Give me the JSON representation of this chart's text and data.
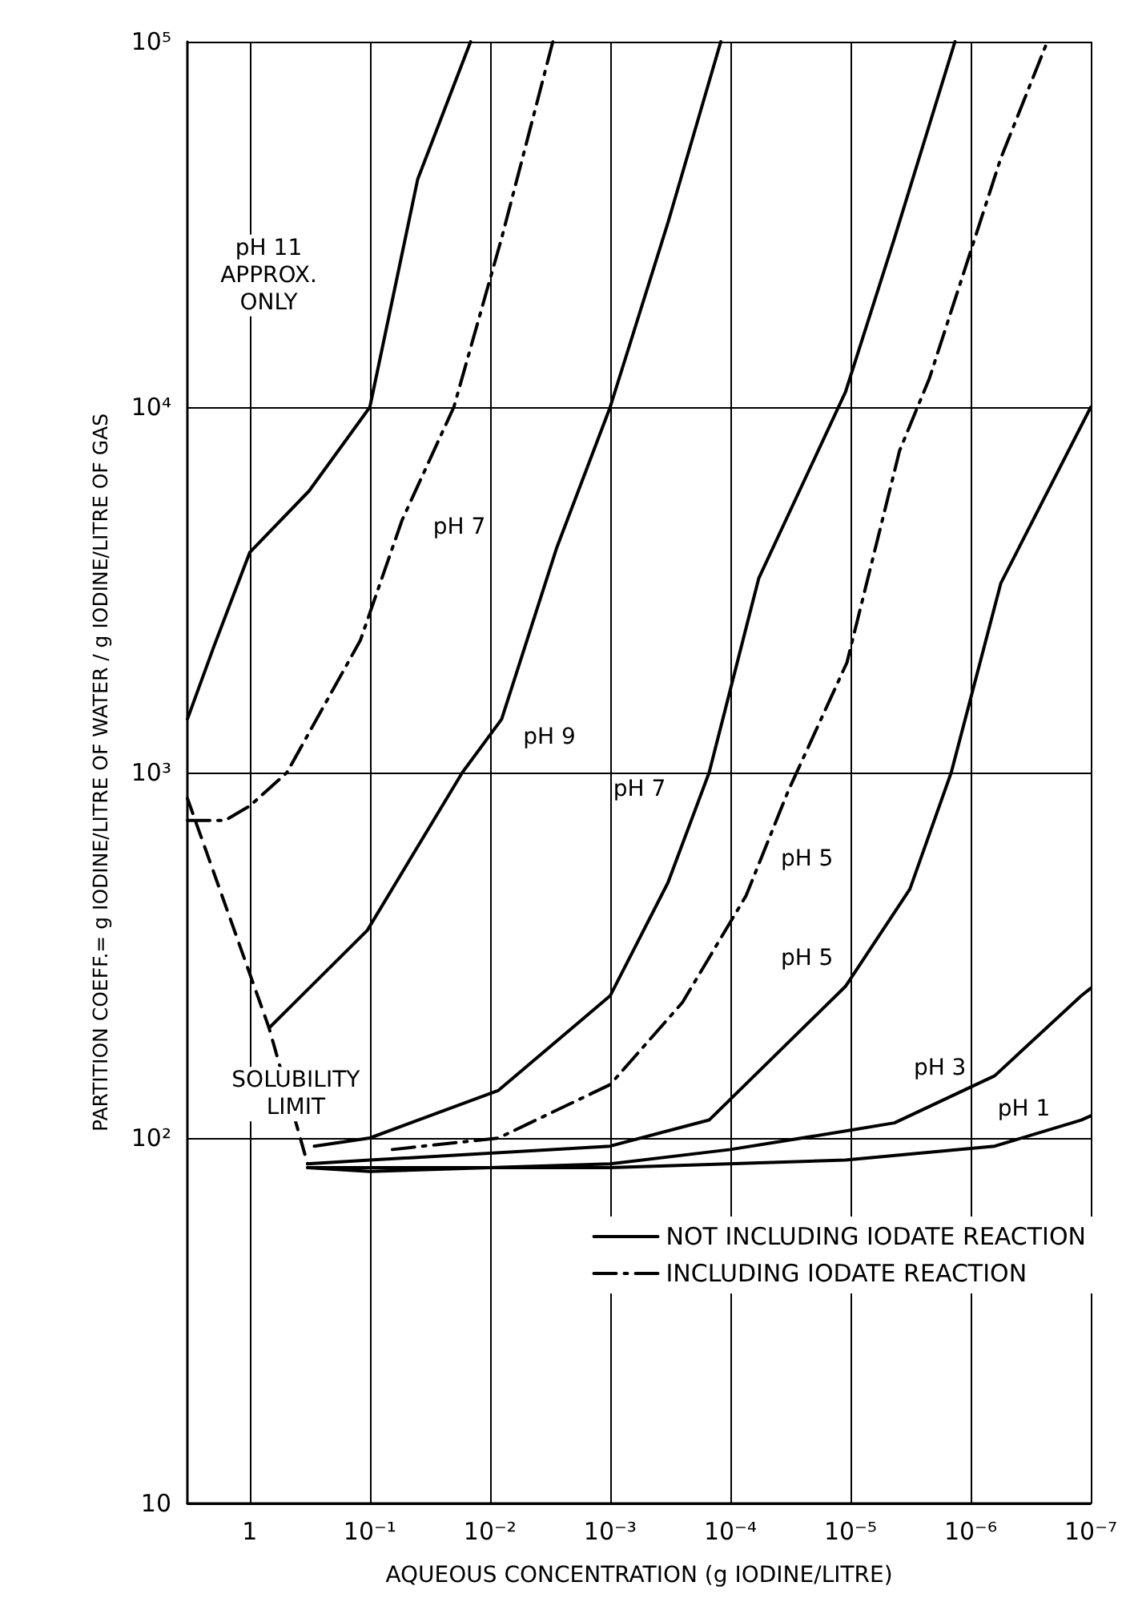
{
  "chart_data": {
    "type": "line",
    "xlabel": "AQUEOUS CONCENTRATION (g IODINE/LITRE)",
    "ylabel": "PARTITION COEFF.= g IODINE/LITRE OF WATER / g IODINE/LITRE OF GAS",
    "log": "xy",
    "grid": true,
    "legend": "bottom right",
    "marker": "none",
    "xlim": [
      3.3,
      1e-07
    ],
    "xticks": [
      {
        "value": 1,
        "label": "1"
      },
      {
        "value": 0.1,
        "label": "10⁻¹"
      },
      {
        "value": 0.01,
        "label": "10⁻²"
      },
      {
        "value": 0.001,
        "label": "10⁻³"
      },
      {
        "value": 0.0001,
        "label": "10⁻⁴"
      },
      {
        "value": 1e-05,
        "label": "10⁻⁵"
      },
      {
        "value": 1e-06,
        "label": "10⁻⁶"
      },
      {
        "value": 1e-07,
        "label": "10⁻⁷"
      }
    ],
    "ylim": [
      10,
      100000
    ],
    "yticks": [
      10,
      {
        "value": 100,
        "label": "10²"
      },
      {
        "value": 1000,
        "label": "10³"
      },
      {
        "value": 10000,
        "label": "10⁴"
      },
      {
        "value": 100000,
        "label": "10⁵"
      }
    ],
    "series": [
      {
        "name": "NOT INCLUDING IODATE REACTION",
        "color": "#000000",
        "line_style": "solid",
        "x": [
          3.3,
          2.0,
          1,
          0.32,
          0.1,
          0.04,
          0.0145
        ],
        "values": [
          1400,
          2200,
          4000,
          5900,
          10000,
          42000,
          100000
        ]
      },
      {
        "name": "INCLUDING IODATE REACTION",
        "color": "#000000",
        "line_style": "dashdot",
        "x": [
          3.3,
          1.6,
          1,
          0.49,
          0.12,
          0.054,
          0.02,
          0.008,
          0.003
        ],
        "values": [
          740,
          740,
          810,
          1000,
          2300,
          4900,
          10000,
          29000,
          100000
        ]
      },
      {
        "color": "#000000",
        "line_style": "solid",
        "x": [
          0.69,
          0.105,
          0.017,
          0.008,
          0.0028,
          0.001,
          0.00033,
          0.00012
        ],
        "values": [
          200,
          370,
          1000,
          1400,
          4100,
          10000,
          32000,
          100000
        ]
      },
      {
        "color": "#000000",
        "line_style": "dashed",
        "x": [
          3.3,
          0.69,
          0.33
        ],
        "values": [
          850,
          200,
          85
        ]
      },
      {
        "color": "#000000",
        "line_style": "solid",
        "x": [
          0.29,
          0.1,
          0.0085,
          0.001,
          0.00033,
          0.00015,
          5.8e-05,
          1.1e-05,
          4.3e-06,
          1.35e-06
        ],
        "values": [
          95,
          100,
          135,
          245,
          500,
          1000,
          3400,
          11000,
          29000,
          100000
        ]
      },
      {
        "color": "#000000",
        "line_style": "dashdot",
        "x": [
          0.065,
          0.0085,
          0.001,
          0.00025,
          7.4e-05,
          3.3e-05,
          1.07e-05,
          3.9e-06,
          2.2e-06,
          5.6e-07,
          2.3e-07
        ],
        "values": [
          93,
          100,
          140,
          235,
          460,
          890,
          2000,
          7600,
          12000,
          48000,
          100000
        ]
      },
      {
        "color": "#000000",
        "line_style": "solid",
        "x": [
          0.33,
          0.1,
          0.001,
          0.00015,
          1.1e-05,
          3.2e-06,
          1.45e-06,
          5.6e-07,
          1e-07
        ],
        "values": [
          85,
          87,
          95,
          112,
          260,
          480,
          1000,
          3300,
          10000
        ]
      },
      {
        "color": "#000000",
        "line_style": "solid",
        "x": [
          0.33,
          0.1,
          0.001,
          0.0001,
          1e-05,
          4.3e-06,
          6.3e-07,
          1.2e-07,
          1e-07
        ],
        "values": [
          83,
          81,
          85,
          93,
          105,
          110,
          148,
          245,
          257
        ]
      },
      {
        "color": "#000000",
        "line_style": "solid",
        "x": [
          0.33,
          0.001,
          1.1e-05,
          6.3e-07,
          1.2e-07,
          1e-07
        ],
        "values": [
          83,
          83,
          87,
          95,
          112,
          115
        ]
      }
    ],
    "annotations": [
      "pH 11\nAPPROX.\nONLY",
      {
        "text": "pH 7",
        "x": 0.018,
        "y": 4700
      },
      {
        "text": "pH 9",
        "x": 0.0032,
        "y": 1250
      },
      {
        "text": "pH 7",
        "x": 0.00057,
        "y": 900
      },
      {
        "text": "pH 5",
        "x": 2.3e-05,
        "y": 580
      },
      {
        "text": "pH 5",
        "x": 2.3e-05,
        "y": 310
      },
      {
        "text": "pH 3",
        "x": 1.8e-06,
        "y": 155
      },
      {
        "text": "pH 1",
        "x": 3.6e-07,
        "y": 120
      },
      "SOLUBILITY\nLIMIT"
    ]
  }
}
